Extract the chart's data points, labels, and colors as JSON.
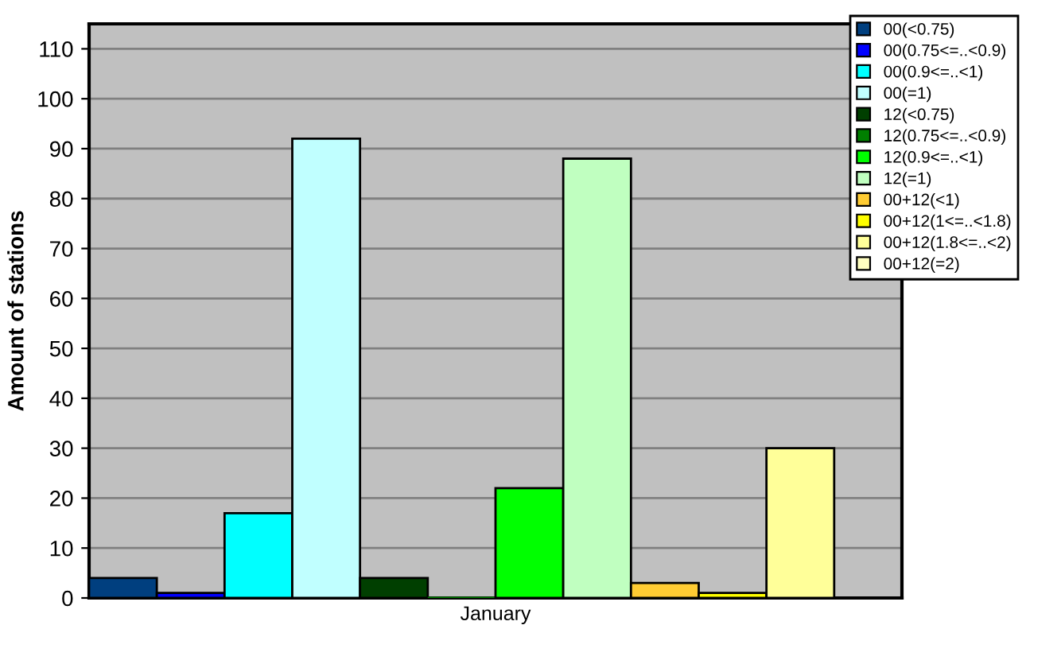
{
  "chart_data": {
    "type": "bar",
    "ylabel": "Amount of stations",
    "categories": [
      "January"
    ],
    "series": [
      {
        "name": "00(<0.75)",
        "color": "#003f7f",
        "values": [
          4
        ]
      },
      {
        "name": "00(0.75<=..<0.9)",
        "color": "#0000ff",
        "values": [
          1
        ]
      },
      {
        "name": "00(0.9<=..<1)",
        "color": "#00ffff",
        "values": [
          17
        ]
      },
      {
        "name": "00(=1)",
        "color": "#c0ffff",
        "values": [
          92
        ]
      },
      {
        "name": "12(<0.75)",
        "color": "#003f00",
        "values": [
          4
        ]
      },
      {
        "name": "12(0.75<=..<0.9)",
        "color": "#007f00",
        "values": [
          0
        ]
      },
      {
        "name": "12(0.9<=..<1)",
        "color": "#00ff00",
        "values": [
          22
        ]
      },
      {
        "name": "12(=1)",
        "color": "#c0ffc0",
        "values": [
          88
        ]
      },
      {
        "name": "00+12(<1)",
        "color": "#ffcc33",
        "values": [
          3
        ]
      },
      {
        "name": "00+12(1<=..<1.8)",
        "color": "#ffff00",
        "values": [
          1
        ]
      },
      {
        "name": "00+12(1.8<=..<2)",
        "color": "#ffff99",
        "values": [
          30
        ]
      },
      {
        "name": "00+12(=2)",
        "color": "#ffffc0",
        "values": [
          null
        ]
      }
    ],
    "ylim": [
      0,
      115
    ],
    "yticks": [
      0,
      10,
      20,
      30,
      40,
      50,
      60,
      70,
      80,
      90,
      100,
      110
    ],
    "grid": "y",
    "legend": "top right"
  }
}
